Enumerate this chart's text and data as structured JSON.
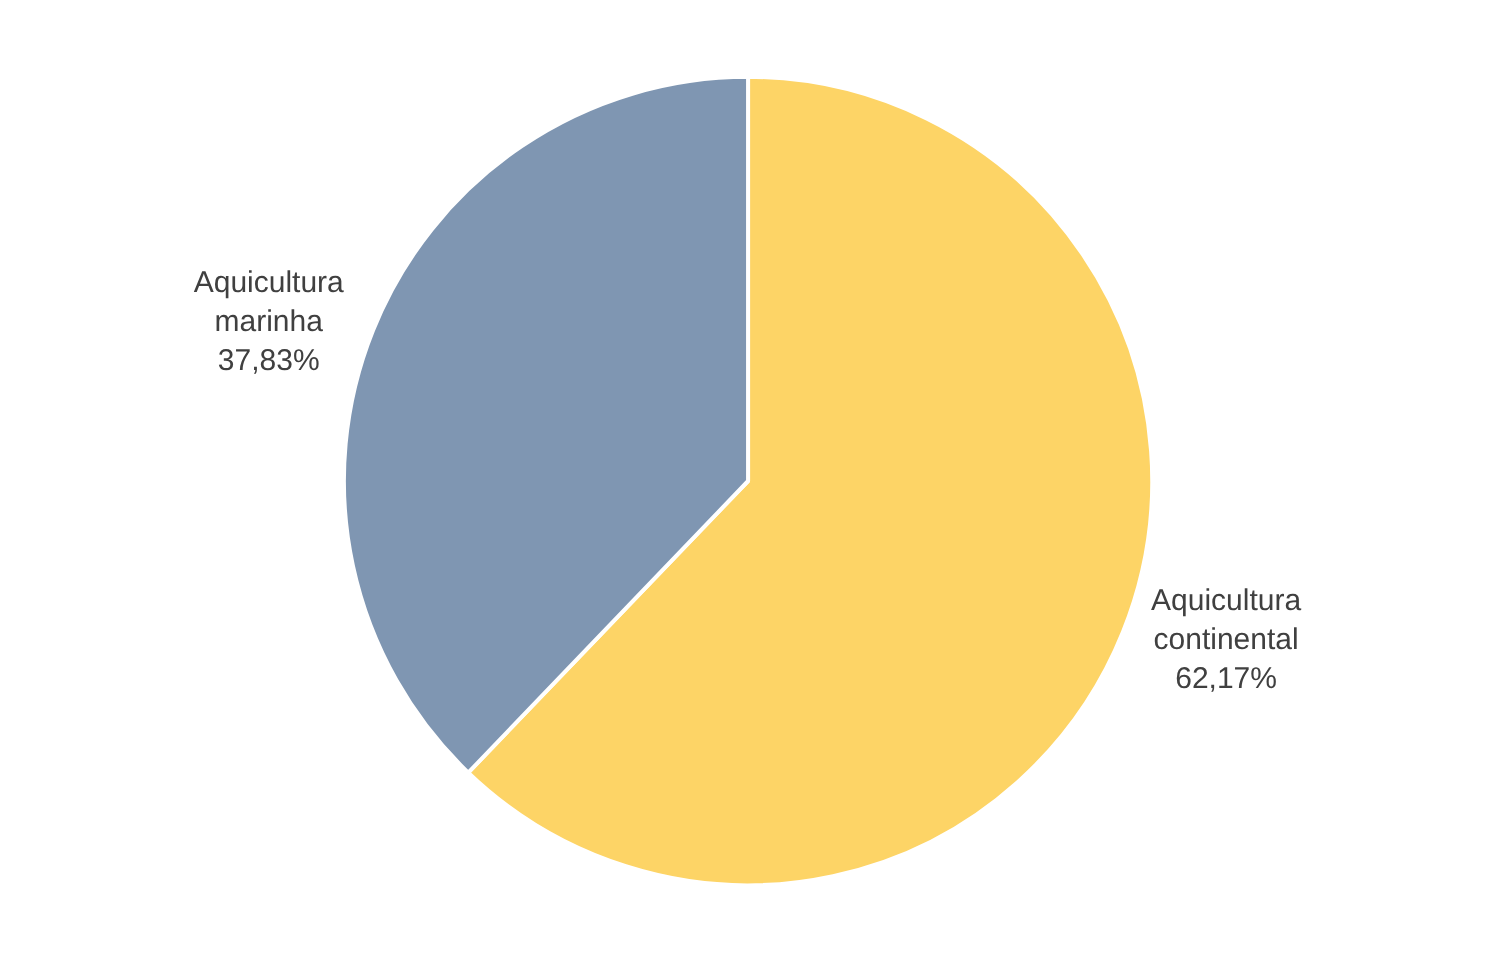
{
  "chart_data": {
    "type": "pie",
    "categories": [
      "Aquicultura continental",
      "Aquicultura marinha"
    ],
    "values": [
      62.17,
      37.83
    ],
    "value_labels": [
      "62,17%",
      "37,83%"
    ],
    "colors": [
      "#fdd466",
      "#7f96b2"
    ],
    "legend": false
  }
}
